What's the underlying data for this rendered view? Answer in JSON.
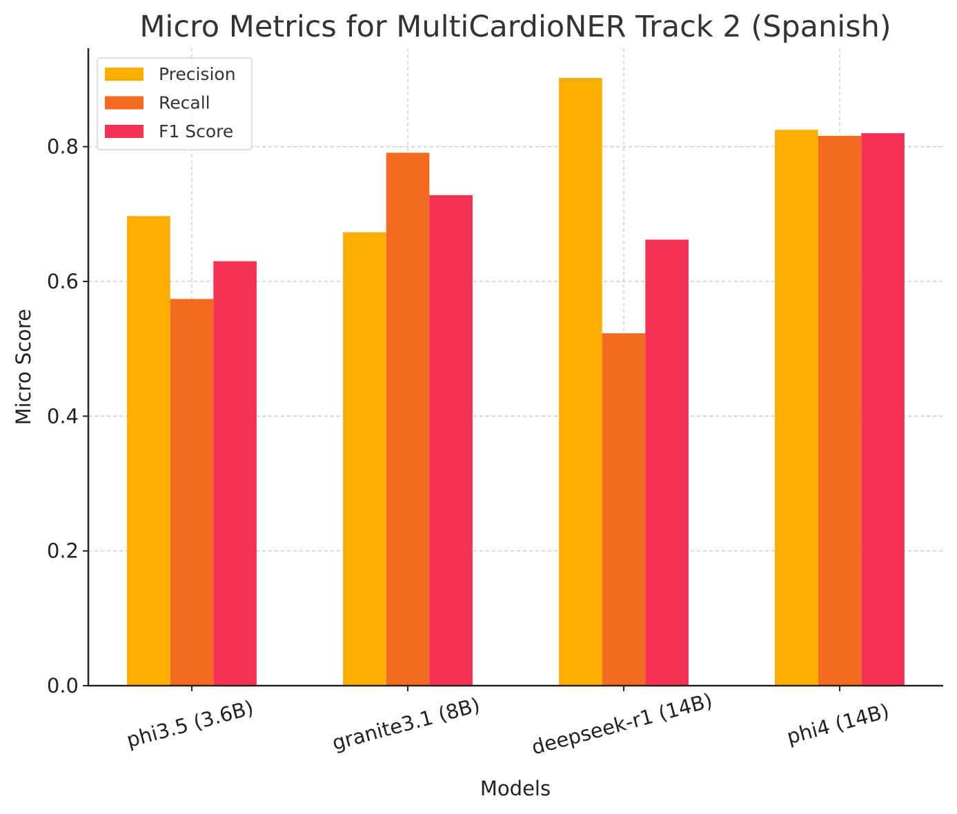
{
  "chart_data": {
    "type": "bar",
    "title": "Micro Metrics for MultiCardioNER Track 2 (Spanish)",
    "xlabel": "Models",
    "ylabel": "Micro Score",
    "categories": [
      "phi3.5 (3.6B)",
      "granite3.1 (8B)",
      "deepseek-r1 (14B)",
      "phi4 (14B)"
    ],
    "series": [
      {
        "name": "Precision",
        "color": "#FFAE00",
        "values": [
          0.697,
          0.673,
          0.902,
          0.825
        ]
      },
      {
        "name": "Recall",
        "color": "#F26B21",
        "values": [
          0.574,
          0.791,
          0.523,
          0.816
        ]
      },
      {
        "name": "F1 Score",
        "color": "#F53255",
        "values": [
          0.63,
          0.728,
          0.662,
          0.82
        ]
      }
    ],
    "ylim": [
      0,
      0.946
    ],
    "yticks": [
      "0.0",
      "0.2",
      "0.4",
      "0.6",
      "0.8"
    ],
    "grid": true,
    "legend_position": "top-left"
  }
}
